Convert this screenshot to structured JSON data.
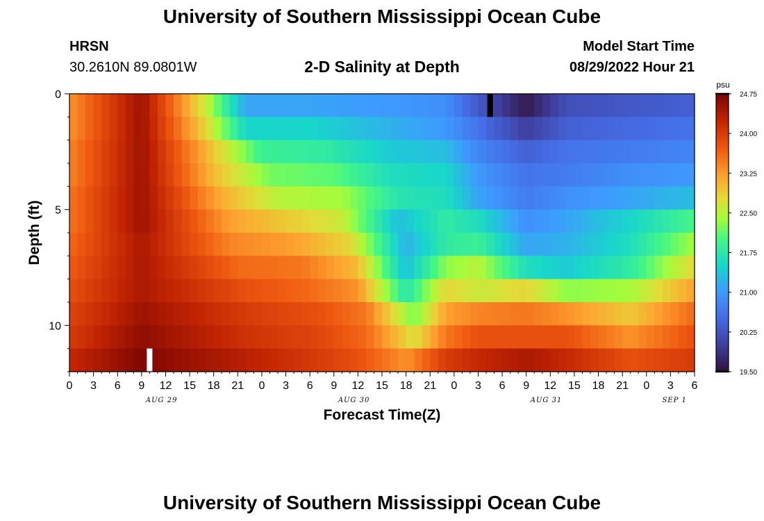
{
  "page": {
    "title": "University of Southern Mississippi Ocean Cube",
    "footer_title": "University of Southern Mississippi Ocean Cube"
  },
  "station": {
    "name": "HRSN",
    "coords": "30.2610N  89.0801W"
  },
  "model": {
    "label": "Model Start Time",
    "value": "08/29/2022 Hour 21"
  },
  "chart_data": {
    "type": "heatmap",
    "title": "2-D Salinity at Depth",
    "xlabel": "Forecast Time(Z)",
    "ylabel": "Depth (ft)",
    "x_range_hours": [
      0,
      78
    ],
    "y_range_ft": [
      0,
      12
    ],
    "y_ticks": [
      0,
      5,
      10
    ],
    "x_tick_labels": [
      "0",
      "3",
      "6",
      "9",
      "12",
      "15",
      "18",
      "21",
      "0",
      "3",
      "6",
      "9",
      "12",
      "15",
      "18",
      "21",
      "0",
      "3",
      "6",
      "9",
      "12",
      "15",
      "18",
      "21",
      "0",
      "3",
      "6"
    ],
    "date_labels": [
      {
        "label": "AUG 29",
        "hour": 11.5
      },
      {
        "label": "AUG 30",
        "hour": 35.5
      },
      {
        "label": "AUG 31",
        "hour": 59.5
      },
      {
        "label": "SEP 1",
        "hour": 75.5
      }
    ],
    "colorbar": {
      "unit": "psu",
      "min": 19.5,
      "max": 24.75,
      "ticks": [
        "24.75",
        "24.00",
        "23.25",
        "22.50",
        "21.75",
        "21.00",
        "20.25",
        "19.50"
      ]
    },
    "depth_levels": 12,
    "series_by_depth_psu": [
      {
        "depth_level": 1,
        "hours": [
          0,
          9,
          17,
          22,
          30,
          40,
          47,
          51,
          57,
          62,
          70,
          78
        ],
        "values": [
          23.3,
          24.5,
          22.6,
          21.1,
          21.1,
          21.0,
          20.9,
          20.3,
          19.6,
          20.2,
          20.3,
          20.4
        ]
      },
      {
        "depth_level": 2,
        "hours": [
          0,
          9,
          17,
          22,
          30,
          40,
          47,
          51,
          57,
          62,
          70,
          78
        ],
        "values": [
          23.3,
          24.5,
          22.8,
          21.5,
          21.5,
          21.2,
          21.0,
          20.6,
          20.0,
          20.4,
          20.5,
          20.6
        ]
      },
      {
        "depth_level": 3,
        "hours": [
          0,
          9,
          18,
          24,
          32,
          40,
          47,
          51,
          57,
          62,
          70,
          78
        ],
        "values": [
          23.4,
          24.5,
          22.9,
          21.9,
          21.8,
          21.4,
          21.3,
          20.8,
          20.4,
          20.6,
          20.7,
          20.8
        ]
      },
      {
        "depth_level": 4,
        "hours": [
          0,
          9,
          18,
          25,
          33,
          40,
          47,
          51,
          57,
          62,
          70,
          78
        ],
        "values": [
          23.4,
          24.5,
          23.0,
          22.2,
          22.1,
          21.6,
          21.5,
          21.0,
          20.6,
          20.7,
          20.9,
          21.0
        ]
      },
      {
        "depth_level": 5,
        "hours": [
          0,
          9,
          19,
          26,
          34,
          41,
          47,
          51,
          57,
          62,
          70,
          78
        ],
        "values": [
          23.5,
          24.5,
          23.1,
          22.5,
          22.4,
          21.7,
          21.6,
          21.1,
          20.7,
          20.9,
          21.1,
          21.3
        ]
      },
      {
        "depth_level": 6,
        "hours": [
          0,
          9,
          20,
          27,
          34,
          41,
          47,
          51,
          57,
          62,
          70,
          78
        ],
        "values": [
          23.5,
          24.5,
          23.2,
          22.9,
          22.6,
          21.3,
          21.8,
          21.6,
          20.9,
          21.1,
          21.5,
          22.0
        ]
      },
      {
        "depth_level": 7,
        "hours": [
          0,
          9,
          20,
          28,
          35,
          42,
          47,
          51,
          57,
          62,
          70,
          78
        ],
        "values": [
          23.6,
          24.4,
          23.4,
          23.2,
          22.8,
          21.2,
          21.8,
          21.9,
          21.1,
          21.2,
          21.6,
          22.4
        ]
      },
      {
        "depth_level": 8,
        "hours": [
          0,
          9,
          21,
          29,
          36,
          42,
          47,
          51,
          57,
          62,
          70,
          78
        ],
        "values": [
          23.7,
          24.4,
          23.6,
          23.5,
          23.0,
          21.3,
          22.3,
          22.5,
          21.6,
          21.4,
          21.8,
          22.8
        ]
      },
      {
        "depth_level": 9,
        "hours": [
          0,
          9,
          22,
          30,
          36,
          42,
          47,
          51,
          57,
          62,
          70,
          78
        ],
        "values": [
          23.8,
          24.4,
          23.8,
          23.6,
          23.3,
          21.7,
          22.8,
          22.6,
          22.8,
          22.3,
          22.4,
          23.2
        ]
      },
      {
        "depth_level": 10,
        "hours": [
          0,
          9,
          22,
          31,
          37,
          43,
          47,
          51,
          57,
          62,
          70,
          78
        ],
        "values": [
          23.9,
          24.5,
          24.0,
          23.8,
          23.5,
          22.2,
          23.2,
          23.4,
          23.5,
          23.3,
          22.9,
          23.6
        ]
      },
      {
        "depth_level": 11,
        "hours": [
          0,
          9,
          22,
          31,
          37,
          43,
          47,
          51,
          57,
          62,
          70,
          78
        ],
        "values": [
          24.0,
          24.6,
          24.1,
          23.9,
          23.6,
          22.7,
          23.5,
          23.8,
          23.8,
          23.8,
          23.3,
          23.8
        ]
      },
      {
        "depth_level": 12,
        "hours": [
          0,
          9,
          22,
          31,
          36,
          42,
          47,
          51,
          57,
          62,
          70,
          78
        ],
        "values": [
          24.2,
          24.7,
          24.3,
          24.0,
          23.8,
          23.3,
          24.0,
          24.2,
          24.4,
          24.2,
          23.8,
          24.0
        ]
      }
    ],
    "markers": [
      {
        "hour": 52.5,
        "depth_level": 1,
        "color": "#000000"
      },
      {
        "hour": 10.0,
        "depth_level": 12,
        "color": "#ffffff"
      }
    ]
  }
}
